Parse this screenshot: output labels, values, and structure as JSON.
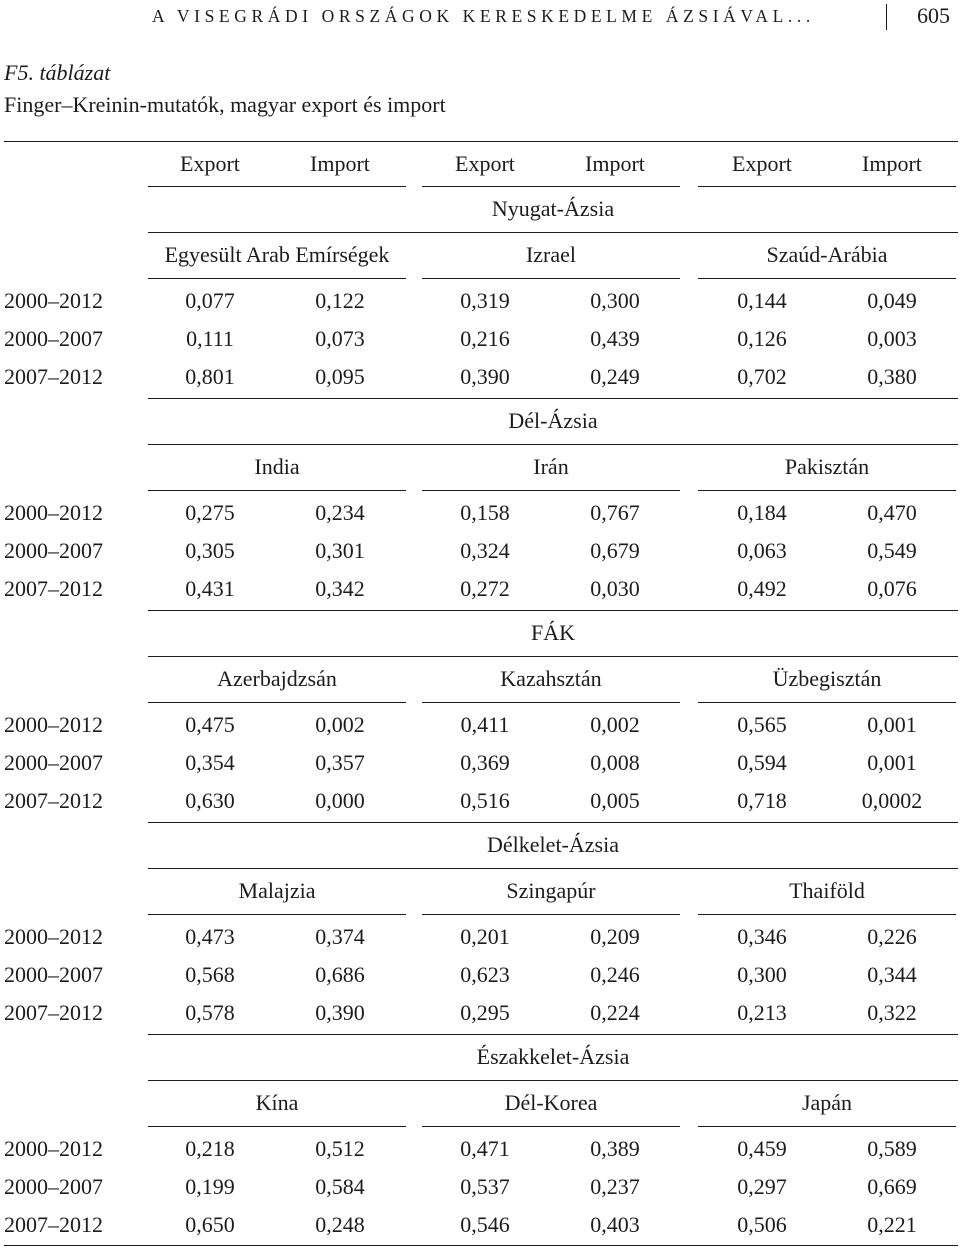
{
  "header": {
    "running_title": "A VISEGRÁDI ORSZÁGOK KERESKEDELME ÁZSIÁVAL...",
    "page_number": "605"
  },
  "caption": {
    "number": "F5. táblázat",
    "title": "Finger–Kreinin-mutatók, magyar export és import"
  },
  "column_headers": [
    "Export",
    "Import",
    "Export",
    "Import",
    "Export",
    "Import"
  ],
  "sections": [
    {
      "region": "Nyugat-Ázsia",
      "countries": [
        "Egyesült Arab Emírségek",
        "Izrael",
        "Szaúd-Arábia"
      ],
      "rows": [
        {
          "period": "2000–2012",
          "values": [
            "0,077",
            "0,122",
            "0,319",
            "0,300",
            "0,144",
            "0,049"
          ]
        },
        {
          "period": "2000–2007",
          "values": [
            "0,111",
            "0,073",
            "0,216",
            "0,439",
            "0,126",
            "0,003"
          ]
        },
        {
          "period": "2007–2012",
          "values": [
            "0,801",
            "0,095",
            "0,390",
            "0,249",
            "0,702",
            "0,380"
          ]
        }
      ]
    },
    {
      "region": "Dél-Ázsia",
      "countries": [
        "India",
        "Irán",
        "Pakisztán"
      ],
      "rows": [
        {
          "period": "2000–2012",
          "values": [
            "0,275",
            "0,234",
            "0,158",
            "0,767",
            "0,184",
            "0,470"
          ]
        },
        {
          "period": "2000–2007",
          "values": [
            "0,305",
            "0,301",
            "0,324",
            "0,679",
            "0,063",
            "0,549"
          ]
        },
        {
          "period": "2007–2012",
          "values": [
            "0,431",
            "0,342",
            "0,272",
            "0,030",
            "0,492",
            "0,076"
          ]
        }
      ]
    },
    {
      "region": "FÁK",
      "countries": [
        "Azerbajdzsán",
        "Kazahsztán",
        "Üzbegisztán"
      ],
      "rows": [
        {
          "period": "2000–2012",
          "values": [
            "0,475",
            "0,002",
            "0,411",
            "0,002",
            "0,565",
            "0,001"
          ]
        },
        {
          "period": "2000–2007",
          "values": [
            "0,354",
            "0,357",
            "0,369",
            "0,008",
            "0,594",
            "0,001"
          ]
        },
        {
          "period": "2007–2012",
          "values": [
            "0,630",
            "0,000",
            "0,516",
            "0,005",
            "0,718",
            "0,0002"
          ]
        }
      ]
    },
    {
      "region": "Délkelet-Ázsia",
      "countries": [
        "Malajzia",
        "Szingapúr",
        "Thaiföld"
      ],
      "rows": [
        {
          "period": "2000–2012",
          "values": [
            "0,473",
            "0,374",
            "0,201",
            "0,209",
            "0,346",
            "0,226"
          ]
        },
        {
          "period": "2000–2007",
          "values": [
            "0,568",
            "0,686",
            "0,623",
            "0,246",
            "0,300",
            "0,344"
          ]
        },
        {
          "period": "2007–2012",
          "values": [
            "0,578",
            "0,390",
            "0,295",
            "0,224",
            "0,213",
            "0,322"
          ]
        }
      ]
    },
    {
      "region": "Északkelet-Ázsia",
      "countries": [
        "Kína",
        "Dél-Korea",
        "Japán"
      ],
      "rows": [
        {
          "period": "2000–2012",
          "values": [
            "0,218",
            "0,512",
            "0,471",
            "0,389",
            "0,459",
            "0,589"
          ]
        },
        {
          "period": "2000–2007",
          "values": [
            "0,199",
            "0,584",
            "0,537",
            "0,237",
            "0,297",
            "0,669"
          ]
        },
        {
          "period": "2007–2012",
          "values": [
            "0,650",
            "0,248",
            "0,546",
            "0,403",
            "0,506",
            "0,221"
          ]
        }
      ]
    }
  ]
}
